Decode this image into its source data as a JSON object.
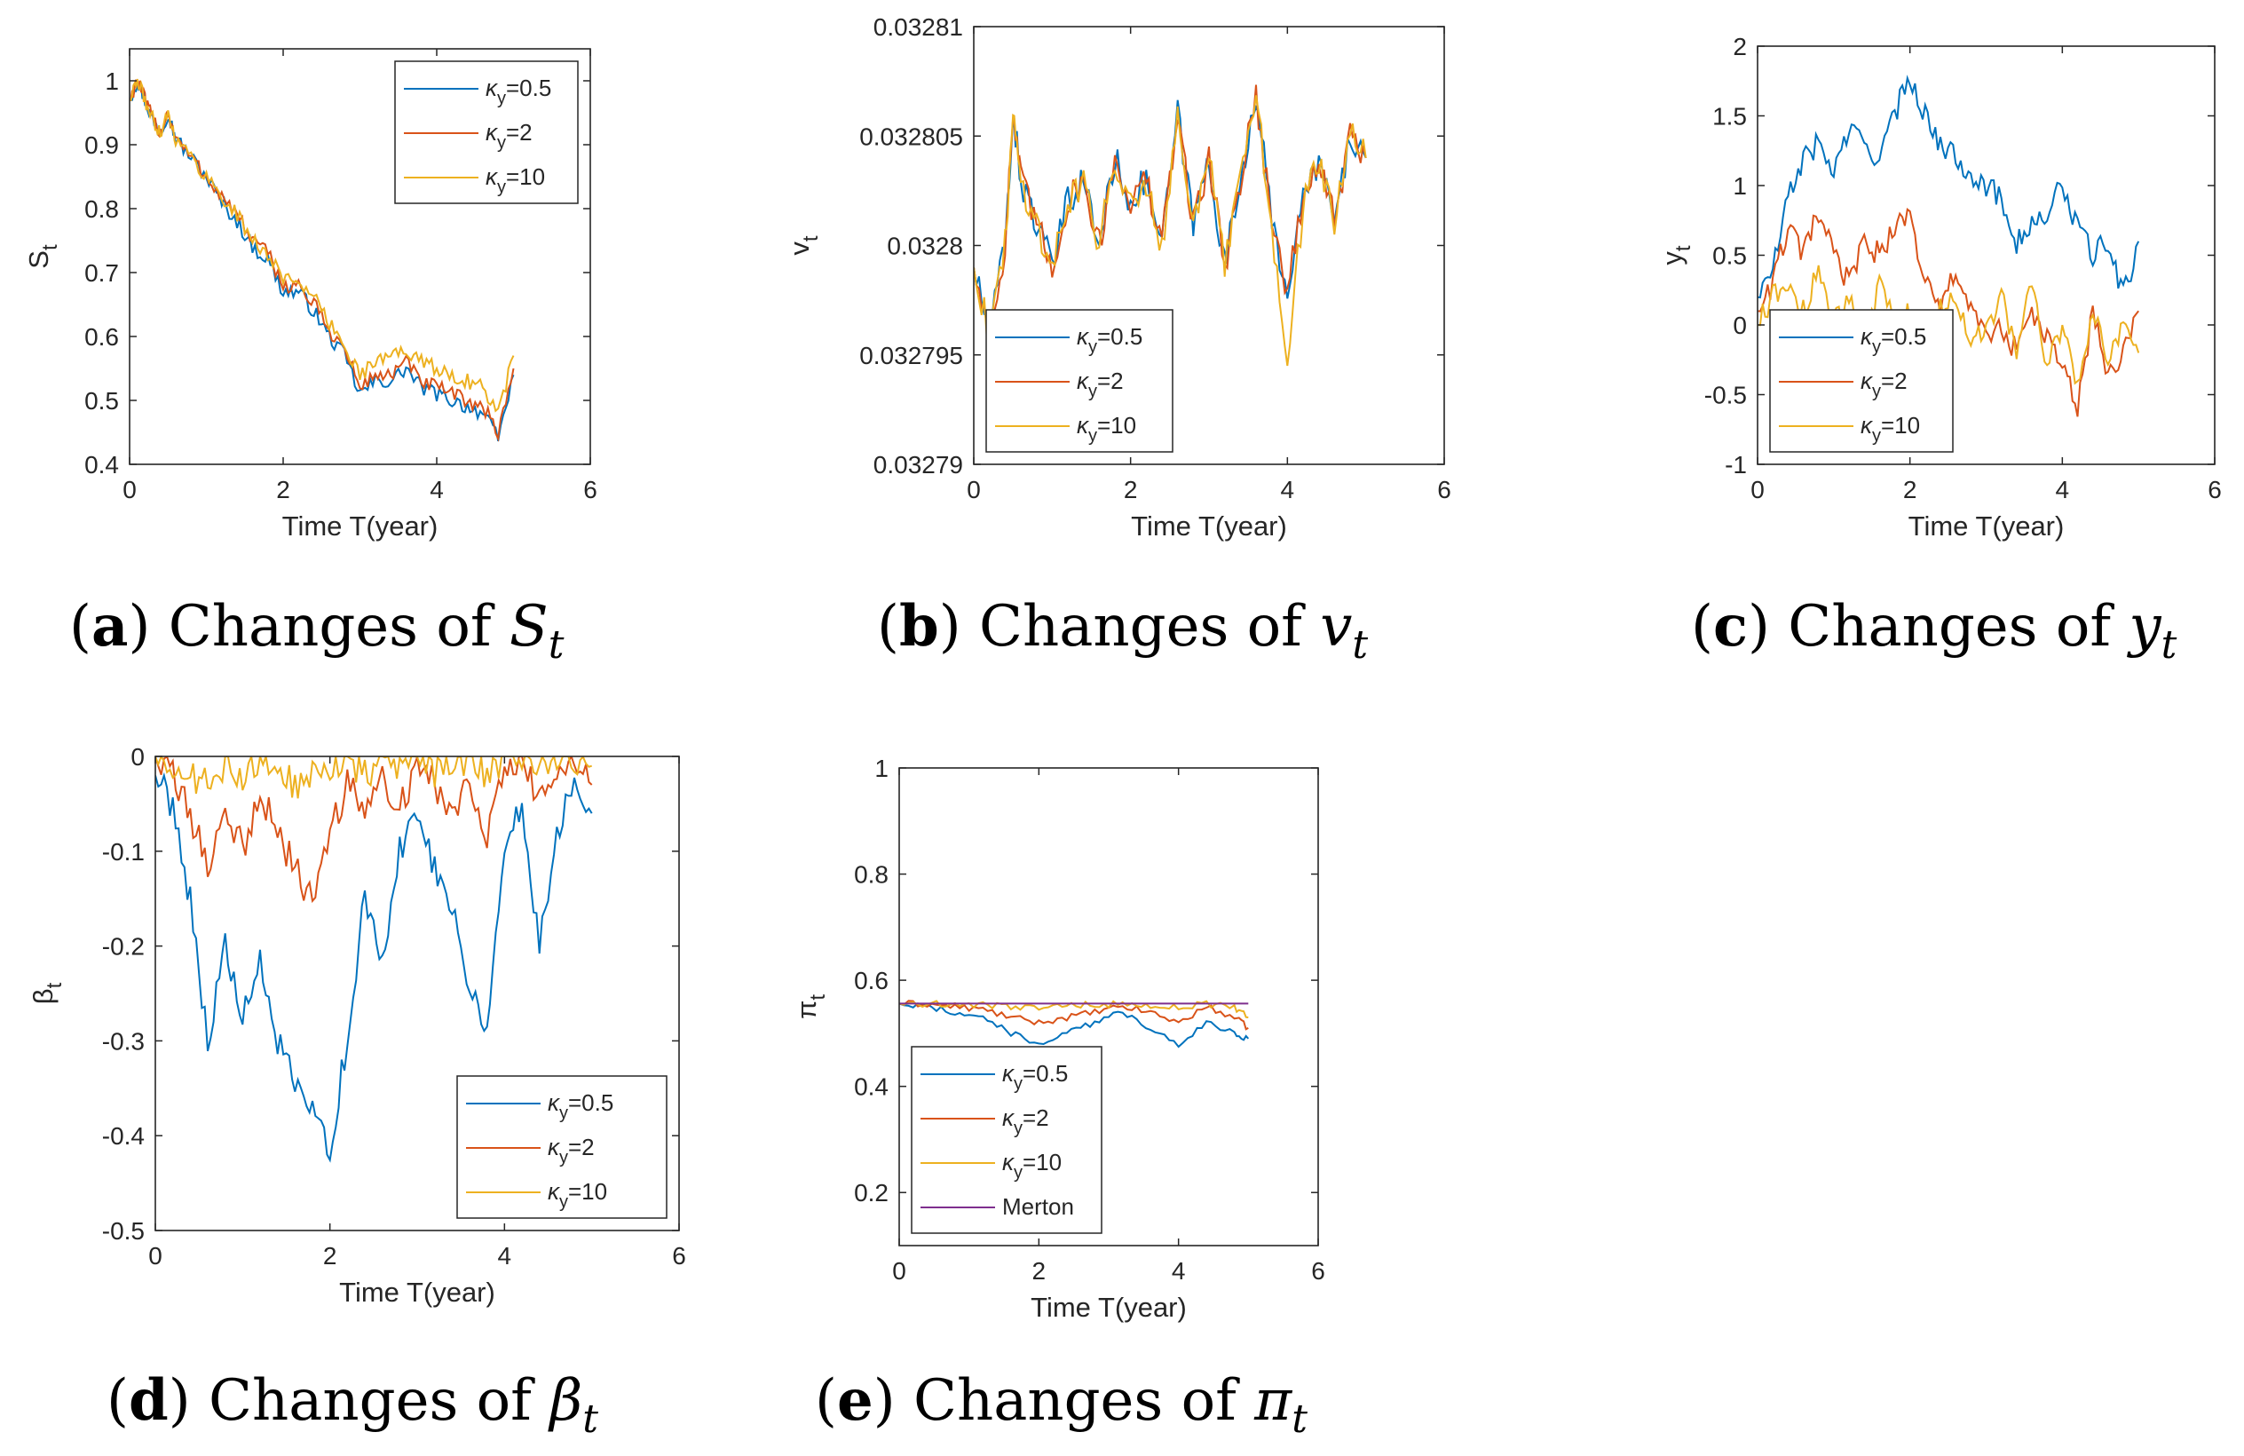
{
  "figure": {
    "panels": [
      {
        "letter": "a",
        "caption_prefix": "Changes of ",
        "symbol": "S",
        "subscript": "t"
      },
      {
        "letter": "b",
        "caption_prefix": "Changes of ",
        "symbol": "v",
        "subscript": "t"
      },
      {
        "letter": "c",
        "caption_prefix": "Changes of ",
        "symbol": "y",
        "subscript": "t"
      },
      {
        "letter": "d",
        "caption_prefix": "Changes of ",
        "symbol": "β",
        "subscript": "t"
      },
      {
        "letter": "e",
        "caption_prefix": "Changes of ",
        "symbol": "π",
        "subscript": "t"
      }
    ]
  },
  "colors": {
    "series1": "#0072BD",
    "series2": "#D95319",
    "series3": "#EDB120",
    "merton": "#7E2F8E",
    "axis": "#262626"
  },
  "chart_data": [
    {
      "id": "a",
      "type": "line",
      "xlabel": "Time T(year)",
      "ylabel": "S",
      "ylabel_sub": "t",
      "xlim": [
        0,
        6
      ],
      "ylim": [
        0.4,
        1.05
      ],
      "xticks": [
        "0",
        "2",
        "4",
        "6"
      ],
      "xtick_values": [
        0,
        2,
        4,
        6
      ],
      "yticks": [
        "0.4",
        "0.5",
        "0.6",
        "0.7",
        "0.8",
        "0.9",
        "1"
      ],
      "ytick_values": [
        0.4,
        0.5,
        0.6,
        0.7,
        0.8,
        0.9,
        1.0
      ],
      "legend": [
        "κy=0.5",
        "κy=2",
        "κy=10"
      ],
      "legend_position": "top-right",
      "x": [
        0,
        0.1,
        0.2,
        0.3,
        0.4,
        0.5,
        0.6,
        0.8,
        1.0,
        1.2,
        1.4,
        1.6,
        1.8,
        2.0,
        2.2,
        2.4,
        2.6,
        2.8,
        3.0,
        3.2,
        3.4,
        3.6,
        3.8,
        4.0,
        4.2,
        4.4,
        4.6,
        4.8,
        5.0
      ],
      "series": [
        {
          "name": "κy=0.5",
          "values": [
            0.97,
            1.0,
            0.97,
            0.94,
            0.92,
            0.95,
            0.91,
            0.88,
            0.85,
            0.81,
            0.78,
            0.74,
            0.72,
            0.67,
            0.67,
            0.64,
            0.6,
            0.57,
            0.51,
            0.53,
            0.53,
            0.55,
            0.52,
            0.51,
            0.5,
            0.49,
            0.48,
            0.44,
            0.54
          ]
        },
        {
          "name": "κy=2",
          "values": [
            0.97,
            1.0,
            0.97,
            0.94,
            0.92,
            0.95,
            0.91,
            0.88,
            0.85,
            0.82,
            0.79,
            0.75,
            0.73,
            0.68,
            0.68,
            0.65,
            0.61,
            0.58,
            0.52,
            0.54,
            0.54,
            0.56,
            0.53,
            0.52,
            0.51,
            0.5,
            0.49,
            0.45,
            0.55
          ]
        },
        {
          "name": "κy=10",
          "values": [
            0.97,
            1.0,
            0.97,
            0.94,
            0.92,
            0.95,
            0.91,
            0.88,
            0.85,
            0.82,
            0.79,
            0.75,
            0.73,
            0.69,
            0.69,
            0.66,
            0.62,
            0.59,
            0.54,
            0.56,
            0.57,
            0.58,
            0.56,
            0.55,
            0.54,
            0.53,
            0.52,
            0.48,
            0.57
          ]
        }
      ]
    },
    {
      "id": "b",
      "type": "line",
      "xlabel": "Time T(year)",
      "ylabel": "v",
      "ylabel_sub": "t",
      "xlim": [
        0,
        6
      ],
      "ylim": [
        0.03279,
        0.03281
      ],
      "xticks": [
        "0",
        "2",
        "4",
        "6"
      ],
      "xtick_values": [
        0,
        2,
        4,
        6
      ],
      "yticks": [
        "0.03279",
        "0.032795",
        "0.0328",
        "0.032805",
        "0.03281"
      ],
      "ytick_values": [
        0.03279,
        0.032795,
        0.0328,
        0.032805,
        0.03281
      ],
      "legend": [
        "κy=0.5",
        "κy=2",
        "κy=10"
      ],
      "legend_position": "bottom-left",
      "x": [
        0,
        0.2,
        0.4,
        0.5,
        0.6,
        0.8,
        1.0,
        1.2,
        1.4,
        1.6,
        1.8,
        2.0,
        2.2,
        2.4,
        2.6,
        2.8,
        3.0,
        3.2,
        3.4,
        3.6,
        3.8,
        4.0,
        4.2,
        4.4,
        4.6,
        4.8,
        5.0
      ],
      "series": [
        {
          "name": "κy=0.5",
          "values": [
            0.032799,
            0.032796,
            0.0328,
            0.032806,
            0.032803,
            0.032801,
            0.032799,
            0.032802,
            0.032803,
            0.0328,
            0.032804,
            0.032802,
            0.032803,
            0.0328,
            0.032806,
            0.032801,
            0.032804,
            0.032799,
            0.032803,
            0.032807,
            0.032801,
            0.032798,
            0.032802,
            0.032804,
            0.032801,
            0.032805,
            0.032804
          ]
        },
        {
          "name": "κy=2",
          "values": [
            0.032799,
            0.032796,
            0.0328,
            0.032806,
            0.032803,
            0.032801,
            0.032799,
            0.032802,
            0.032803,
            0.0328,
            0.032804,
            0.032802,
            0.032803,
            0.0328,
            0.032806,
            0.032801,
            0.032804,
            0.032799,
            0.032803,
            0.032807,
            0.032801,
            0.032798,
            0.032802,
            0.032804,
            0.032801,
            0.032805,
            0.032804
          ]
        },
        {
          "name": "κy=10",
          "values": [
            0.032799,
            0.032796,
            0.0328,
            0.032806,
            0.032803,
            0.032801,
            0.032799,
            0.032802,
            0.032803,
            0.0328,
            0.032804,
            0.032802,
            0.032803,
            0.0328,
            0.032806,
            0.032801,
            0.032804,
            0.032799,
            0.032803,
            0.032807,
            0.032801,
            0.032794,
            0.032802,
            0.032804,
            0.032801,
            0.032805,
            0.032804
          ]
        }
      ]
    },
    {
      "id": "c",
      "type": "line",
      "xlabel": "Time T(year)",
      "ylabel": "y",
      "ylabel_sub": "t",
      "xlim": [
        0,
        6
      ],
      "ylim": [
        -1,
        2
      ],
      "xticks": [
        "0",
        "2",
        "4",
        "6"
      ],
      "xtick_values": [
        0,
        2,
        4,
        6
      ],
      "yticks": [
        "-1",
        "-0.5",
        "0",
        "0.5",
        "1",
        "1.5",
        "2"
      ],
      "ytick_values": [
        -1,
        -0.5,
        0,
        0.5,
        1,
        1.5,
        2
      ],
      "legend": [
        "κy=0.5",
        "κy=2",
        "κy=10"
      ],
      "legend_position": "bottom-left",
      "x": [
        0,
        0.2,
        0.4,
        0.6,
        0.8,
        1.0,
        1.2,
        1.4,
        1.6,
        1.8,
        2.0,
        2.2,
        2.4,
        2.6,
        2.8,
        3.0,
        3.2,
        3.4,
        3.6,
        3.8,
        4.0,
        4.2,
        4.4,
        4.6,
        4.8,
        5.0
      ],
      "series": [
        {
          "name": "κy=0.5",
          "values": [
            0.2,
            0.4,
            0.9,
            1.2,
            1.3,
            1.1,
            1.4,
            1.3,
            1.2,
            1.5,
            1.8,
            1.5,
            1.3,
            1.2,
            1.1,
            1.0,
            0.9,
            0.6,
            0.7,
            0.8,
            1.0,
            0.7,
            0.5,
            0.6,
            0.2,
            0.6
          ]
        },
        {
          "name": "κy=2",
          "values": [
            0.1,
            0.3,
            0.7,
            0.5,
            0.8,
            0.5,
            0.3,
            0.6,
            0.5,
            0.7,
            0.8,
            0.3,
            0.1,
            0.4,
            0.1,
            -0.1,
            0.0,
            -0.2,
            0.1,
            -0.1,
            -0.3,
            -0.6,
            0.1,
            -0.4,
            -0.2,
            0.1
          ]
        },
        {
          "name": "κy=10",
          "values": [
            0.0,
            0.2,
            0.3,
            0.1,
            0.4,
            0.0,
            0.2,
            -0.1,
            0.3,
            0.0,
            0.1,
            -0.2,
            0.1,
            0.2,
            -0.1,
            0.0,
            0.2,
            -0.2,
            0.3,
            -0.3,
            0.0,
            -0.4,
            0.1,
            -0.3,
            0.0,
            -0.2
          ]
        }
      ]
    },
    {
      "id": "d",
      "type": "line",
      "xlabel": "Time T(year)",
      "ylabel": "β",
      "ylabel_sub": "t",
      "xlim": [
        0,
        6
      ],
      "ylim": [
        -0.5,
        0
      ],
      "xticks": [
        "0",
        "2",
        "4",
        "6"
      ],
      "xtick_values": [
        0,
        2,
        4,
        6
      ],
      "yticks": [
        "-0.5",
        "-0.4",
        "-0.3",
        "-0.2",
        "-0.1",
        "0"
      ],
      "ytick_values": [
        -0.5,
        -0.4,
        -0.3,
        -0.2,
        -0.1,
        0
      ],
      "legend": [
        "κy=0.5",
        "κy=2",
        "κy=10"
      ],
      "legend_position": "bottom-right",
      "x": [
        0,
        0.2,
        0.4,
        0.6,
        0.8,
        1.0,
        1.2,
        1.4,
        1.6,
        1.8,
        2.0,
        2.2,
        2.4,
        2.6,
        2.8,
        3.0,
        3.2,
        3.4,
        3.6,
        3.8,
        4.0,
        4.2,
        4.4,
        4.6,
        4.8,
        5.0
      ],
      "series": [
        {
          "name": "κy=0.5",
          "values": [
            -0.02,
            -0.05,
            -0.15,
            -0.3,
            -0.2,
            -0.28,
            -0.22,
            -0.3,
            -0.35,
            -0.38,
            -0.41,
            -0.3,
            -0.15,
            -0.22,
            -0.1,
            -0.05,
            -0.12,
            -0.15,
            -0.25,
            -0.28,
            -0.1,
            -0.05,
            -0.2,
            -0.08,
            -0.02,
            -0.06
          ]
        },
        {
          "name": "κy=2",
          "values": [
            0.0,
            -0.02,
            -0.06,
            -0.12,
            -0.05,
            -0.1,
            -0.04,
            -0.08,
            -0.12,
            -0.15,
            -0.08,
            -0.03,
            -0.06,
            -0.02,
            -0.05,
            -0.01,
            -0.03,
            -0.06,
            -0.02,
            -0.08,
            -0.01,
            0.0,
            -0.05,
            -0.02,
            0.0,
            -0.03
          ]
        },
        {
          "name": "κy=10",
          "values": [
            0.0,
            -0.01,
            -0.02,
            -0.03,
            -0.01,
            -0.02,
            0.0,
            -0.02,
            -0.03,
            -0.02,
            -0.01,
            0.0,
            -0.02,
            0.0,
            -0.01,
            0.0,
            -0.02,
            -0.01,
            0.0,
            -0.02,
            0.0,
            0.0,
            -0.01,
            0.0,
            0.0,
            -0.01
          ]
        }
      ]
    },
    {
      "id": "e",
      "type": "line",
      "xlabel": "Time T(year)",
      "ylabel": "π",
      "ylabel_sub": "t",
      "xlim": [
        0,
        6
      ],
      "ylim": [
        0.1,
        1
      ],
      "xticks": [
        "0",
        "2",
        "4",
        "6"
      ],
      "xtick_values": [
        0,
        2,
        4,
        6
      ],
      "yticks": [
        "0.2",
        "0.4",
        "0.6",
        "0.8",
        "1"
      ],
      "ytick_values": [
        0.2,
        0.4,
        0.6,
        0.8,
        1.0
      ],
      "legend": [
        "κy=0.5",
        "κy=2",
        "κy=10",
        "Merton"
      ],
      "legend_position": "bottom-left",
      "x": [
        0,
        0.4,
        0.8,
        1.2,
        1.6,
        2.0,
        2.4,
        2.8,
        3.2,
        3.6,
        4.0,
        4.4,
        4.8,
        5.0
      ],
      "series": [
        {
          "name": "κy=0.5",
          "values": [
            0.556,
            0.55,
            0.54,
            0.53,
            0.5,
            0.48,
            0.5,
            0.52,
            0.54,
            0.51,
            0.48,
            0.52,
            0.5,
            0.49
          ]
        },
        {
          "name": "κy=2",
          "values": [
            0.556,
            0.555,
            0.55,
            0.545,
            0.53,
            0.52,
            0.53,
            0.54,
            0.55,
            0.54,
            0.52,
            0.55,
            0.53,
            0.51
          ]
        },
        {
          "name": "κy=10",
          "values": [
            0.556,
            0.556,
            0.555,
            0.554,
            0.55,
            0.548,
            0.552,
            0.554,
            0.555,
            0.552,
            0.55,
            0.555,
            0.548,
            0.53
          ]
        },
        {
          "name": "Merton",
          "values": [
            0.556,
            0.556,
            0.556,
            0.556,
            0.556,
            0.556,
            0.556,
            0.556,
            0.556,
            0.556,
            0.556,
            0.556,
            0.556,
            0.556
          ]
        }
      ]
    }
  ]
}
